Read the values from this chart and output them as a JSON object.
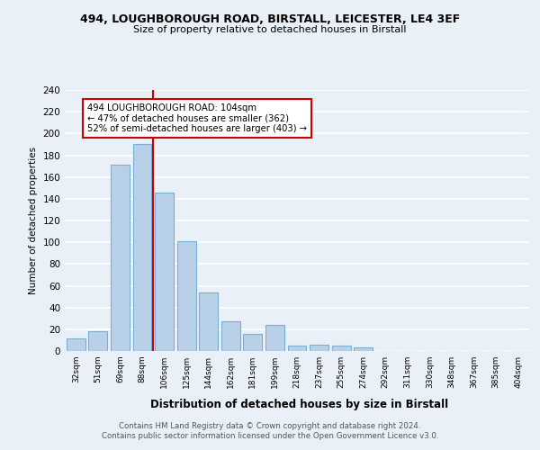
{
  "title": "494, LOUGHBOROUGH ROAD, BIRSTALL, LEICESTER, LE4 3EF",
  "subtitle": "Size of property relative to detached houses in Birstall",
  "xlabel": "Distribution of detached houses by size in Birstall",
  "ylabel": "Number of detached properties",
  "bar_color": "#b8d0e8",
  "bar_edge_color": "#7aafd4",
  "bin_labels": [
    "32sqm",
    "51sqm",
    "69sqm",
    "88sqm",
    "106sqm",
    "125sqm",
    "144sqm",
    "162sqm",
    "181sqm",
    "199sqm",
    "218sqm",
    "237sqm",
    "255sqm",
    "274sqm",
    "292sqm",
    "311sqm",
    "330sqm",
    "348sqm",
    "367sqm",
    "385sqm",
    "404sqm"
  ],
  "bar_heights": [
    12,
    18,
    171,
    190,
    146,
    101,
    54,
    27,
    16,
    24,
    5,
    6,
    5,
    3,
    0,
    0,
    0,
    0,
    0,
    0,
    0
  ],
  "ylim": [
    0,
    240
  ],
  "yticks": [
    0,
    20,
    40,
    60,
    80,
    100,
    120,
    140,
    160,
    180,
    200,
    220,
    240
  ],
  "annotation_title": "494 LOUGHBOROUGH ROAD: 104sqm",
  "annotation_line1": "← 47% of detached houses are smaller (362)",
  "annotation_line2": "52% of semi-detached houses are larger (403) →",
  "vline_color": "#cc0000",
  "annotation_box_color": "#ffffff",
  "annotation_box_edge": "#cc0000",
  "footer1": "Contains HM Land Registry data © Crown copyright and database right 2024.",
  "footer2": "Contains public sector information licensed under the Open Government Licence v3.0.",
  "background_color": "#eaf0f8",
  "grid_color": "#ffffff"
}
